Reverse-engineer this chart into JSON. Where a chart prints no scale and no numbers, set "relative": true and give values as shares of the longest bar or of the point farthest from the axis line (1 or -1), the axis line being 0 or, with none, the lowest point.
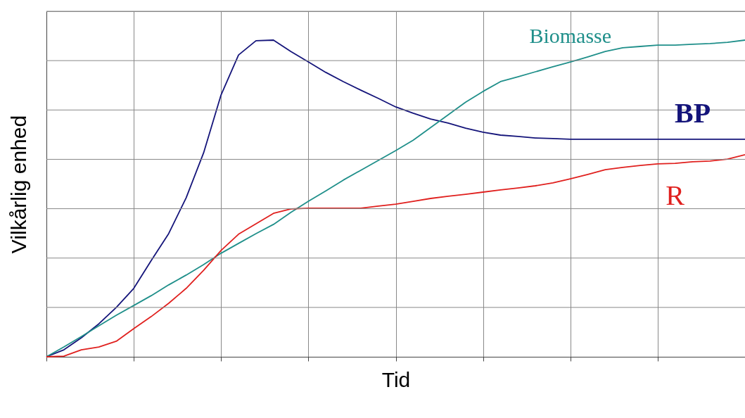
{
  "chart_data": {
    "type": "line",
    "relative": true,
    "xlabel": "Tid",
    "ylabel": "Vilkårlig enhed",
    "grid": true,
    "tick_labels": false,
    "line_style": "solid",
    "categories": [
      null,
      null,
      null,
      null,
      null,
      null,
      null,
      null,
      null,
      null,
      null,
      null,
      null,
      null,
      null,
      null,
      null,
      null,
      null,
      null,
      null,
      null,
      null,
      null,
      null,
      null,
      null,
      null,
      null,
      null,
      null,
      null,
      null,
      null,
      null,
      null,
      null,
      null,
      null,
      null,
      null
    ],
    "series": [
      {
        "name": "BP",
        "color": "#14147a",
        "values": [
          0,
          0.022,
          0.06,
          0.104,
          0.156,
          0.216,
          0.304,
          0.389,
          0.502,
          0.644,
          0.827,
          0.953,
          0.998,
          1,
          0.964,
          0.931,
          0.898,
          0.869,
          0.842,
          0.816,
          0.789,
          0.769,
          0.751,
          0.738,
          0.722,
          0.709,
          0.7,
          0.696,
          0.691,
          0.689,
          0.687,
          0.687,
          0.687,
          0.687,
          0.687,
          0.687,
          0.687,
          0.687,
          0.687,
          0.687,
          0.687
        ]
      },
      {
        "name": "Biomasse",
        "color": "#1f8f8a",
        "values": [
          0,
          0.031,
          0.064,
          0.098,
          0.131,
          0.162,
          0.193,
          0.227,
          0.258,
          0.291,
          0.327,
          0.358,
          0.389,
          0.418,
          0.456,
          0.491,
          0.524,
          0.558,
          0.589,
          0.62,
          0.651,
          0.684,
          0.724,
          0.764,
          0.804,
          0.838,
          0.869,
          0.884,
          0.9,
          0.916,
          0.931,
          0.947,
          0.964,
          0.976,
          0.98,
          0.984,
          0.984,
          0.987,
          0.989,
          0.993,
          1
        ]
      },
      {
        "name": "R",
        "color": "#e0201e",
        "values": [
          0,
          0.002,
          0.022,
          0.031,
          0.049,
          0.089,
          0.127,
          0.169,
          0.216,
          0.273,
          0.336,
          0.387,
          0.42,
          0.453,
          0.467,
          0.469,
          0.469,
          0.469,
          0.469,
          0.476,
          0.482,
          0.491,
          0.5,
          0.507,
          0.513,
          0.52,
          0.527,
          0.533,
          0.54,
          0.549,
          0.562,
          0.576,
          0.591,
          0.598,
          0.604,
          0.609,
          0.611,
          0.616,
          0.618,
          0.624,
          0.638
        ]
      }
    ]
  }
}
